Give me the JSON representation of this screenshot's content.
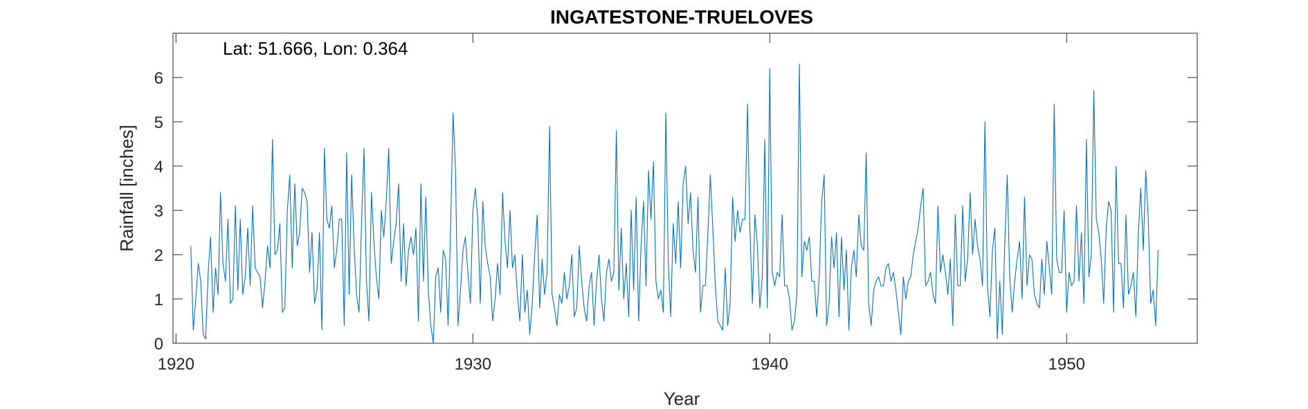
{
  "chart_data": {
    "type": "line",
    "title": "INGATESTONE-TRUELOVES",
    "xlabel": "Year",
    "ylabel": "Rainfall [inches]",
    "annotation": "Lat: 51.666, Lon: 0.364",
    "xlim": [
      1919.9,
      1954.4
    ],
    "ylim": [
      0,
      7
    ],
    "xticks": [
      1920,
      1930,
      1940,
      1950
    ],
    "yticks": [
      0,
      1,
      2,
      3,
      4,
      5,
      6
    ],
    "grid": false,
    "legend": "none",
    "line_color": "#0072BD",
    "start_year": 1920.5,
    "step_years": 0.08333,
    "series": [
      {
        "values": [
          2.2,
          0.3,
          1.0,
          1.8,
          1.4,
          0.2,
          0.1,
          1.6,
          2.4,
          0.7,
          1.7,
          1.1,
          3.4,
          1.8,
          1.4,
          2.8,
          0.9,
          1.0,
          3.1,
          1.2,
          2.8,
          1.1,
          1.5,
          2.6,
          1.3,
          3.1,
          1.7,
          1.6,
          1.5,
          0.8,
          1.4,
          2.2,
          1.7,
          4.6,
          2.0,
          2.1,
          2.7,
          0.7,
          0.8,
          3.0,
          3.8,
          1.7,
          3.6,
          2.2,
          2.5,
          3.5,
          3.4,
          3.2,
          1.6,
          2.5,
          0.9,
          1.2,
          2.5,
          0.3,
          4.4,
          2.8,
          2.6,
          3.1,
          1.7,
          2.1,
          2.8,
          2.8,
          0.4,
          4.3,
          1.1,
          3.8,
          2.2,
          1.1,
          0.7,
          2.7,
          4.4,
          1.4,
          0.5,
          3.4,
          2.3,
          1.5,
          1.0,
          3.0,
          2.4,
          3.2,
          4.4,
          1.8,
          2.3,
          2.7,
          3.6,
          1.4,
          2.7,
          1.3,
          2.1,
          2.4,
          2.0,
          2.6,
          0.5,
          3.6,
          1.4,
          3.3,
          1.2,
          0.4,
          0.0,
          1.5,
          1.7,
          0.7,
          2.1,
          1.9,
          0.4,
          2.6,
          5.2,
          3.9,
          0.4,
          1.2,
          2.1,
          2.4,
          1.6,
          0.9,
          3.0,
          3.5,
          2.8,
          0.9,
          3.2,
          2.2,
          1.8,
          1.5,
          0.5,
          1.0,
          1.8,
          1.1,
          3.4,
          2.3,
          1.7,
          3.0,
          1.7,
          2.0,
          1.1,
          0.5,
          2.0,
          0.7,
          1.2,
          0.2,
          0.9,
          2.0,
          2.9,
          0.8,
          1.9,
          1.1,
          1.6,
          4.9,
          1.1,
          0.8,
          0.4,
          1.1,
          0.9,
          1.6,
          1.0,
          1.3,
          2.0,
          0.6,
          0.8,
          2.2,
          1.4,
          0.8,
          0.5,
          1.3,
          1.6,
          0.4,
          1.4,
          2.0,
          1.0,
          0.5,
          1.6,
          1.9,
          1.4,
          1.6,
          4.8,
          1.2,
          2.6,
          1.0,
          1.8,
          0.6,
          3.0,
          1.2,
          3.3,
          0.5,
          2.2,
          3.2,
          1.3,
          3.9,
          2.8,
          4.1,
          1.4,
          1.0,
          1.2,
          0.7,
          5.2,
          1.8,
          0.6,
          2.7,
          1.8,
          3.2,
          1.7,
          3.6,
          4.0,
          2.7,
          3.4,
          2.1,
          1.6,
          3.3,
          0.7,
          1.3,
          1.3,
          2.5,
          3.8,
          2.6,
          1.3,
          0.5,
          0.4,
          0.3,
          1.7,
          0.4,
          0.9,
          3.3,
          2.3,
          3.0,
          2.5,
          2.8,
          2.8,
          5.4,
          2.6,
          0.9,
          2.9,
          2.2,
          0.8,
          1.5,
          4.6,
          0.8,
          6.2,
          1.6,
          1.3,
          1.6,
          1.5,
          2.9,
          1.3,
          1.3,
          1.0,
          0.3,
          0.5,
          1.1,
          6.3,
          1.5,
          2.3,
          2.1,
          2.4,
          1.4,
          1.4,
          0.6,
          1.5,
          3.2,
          3.8,
          0.4,
          0.9,
          2.4,
          1.7,
          2.5,
          0.6,
          2.4,
          1.2,
          2.1,
          0.3,
          1.7,
          2.1,
          1.5,
          2.9,
          2.2,
          2.1,
          4.3,
          0.9,
          0.4,
          1.2,
          1.4,
          1.5,
          1.3,
          1.3,
          1.7,
          1.8,
          1.4,
          1.6,
          1.2,
          0.7,
          0.2,
          1.5,
          1.0,
          1.4,
          1.5,
          2.0,
          2.3,
          2.6,
          3.1,
          3.5,
          1.3,
          1.4,
          1.6,
          1.1,
          0.9,
          3.1,
          1.6,
          2.0,
          1.6,
          1.1,
          1.9,
          0.4,
          2.9,
          1.3,
          1.3,
          3.1,
          1.4,
          1.9,
          3.4,
          2.0,
          2.8,
          2.2,
          1.9,
          1.3,
          5.0,
          1.3,
          0.6,
          2.1,
          2.6,
          0.1,
          1.4,
          0.2,
          2.2,
          3.8,
          1.5,
          0.7,
          1.4,
          1.9,
          2.3,
          1.0,
          3.3,
          1.3,
          2.0,
          1.9,
          1.1,
          0.9,
          0.8,
          1.9,
          1.1,
          2.3,
          1.7,
          1.1,
          5.4,
          1.9,
          1.6,
          1.6,
          3.0,
          0.7,
          1.6,
          1.3,
          1.4,
          3.1,
          1.4,
          2.5,
          0.9,
          4.6,
          1.5,
          2.0,
          5.7,
          2.8,
          2.5,
          1.9,
          0.9,
          2.6,
          3.2,
          3.0,
          0.7,
          4.0,
          1.8,
          1.8,
          0.8,
          2.9,
          1.1,
          1.3,
          1.6,
          0.6,
          2.5,
          3.5,
          2.1,
          3.9,
          2.8,
          0.9,
          1.2,
          0.4,
          2.1
        ]
      }
    ]
  }
}
